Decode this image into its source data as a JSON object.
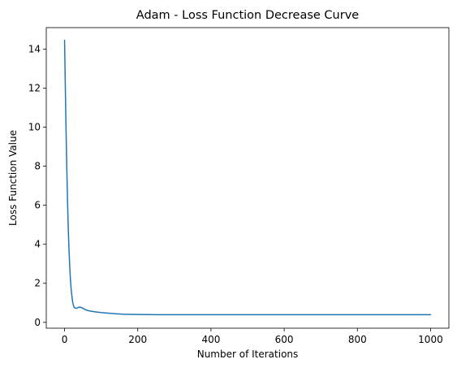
{
  "chart_data": {
    "type": "line",
    "title": "Adam - Loss Function Decrease Curve",
    "xlabel": "Number of Iterations",
    "ylabel": "Loss Function Value",
    "xlim": [
      -50,
      1050
    ],
    "ylim": [
      -0.3,
      15.1
    ],
    "xticks": [
      0,
      200,
      400,
      600,
      800,
      1000
    ],
    "yticks": [
      0,
      2,
      4,
      6,
      8,
      10,
      12,
      14
    ],
    "grid": false,
    "legend": "none",
    "line_color": "#1f77b4",
    "series": [
      {
        "x": [
          0,
          2,
          4,
          6,
          8,
          10,
          12,
          14,
          16,
          18,
          20,
          22,
          24,
          26,
          28,
          30,
          32,
          34,
          36,
          38,
          40,
          44,
          48,
          52,
          56,
          60,
          70,
          80,
          90,
          100,
          120,
          140,
          160,
          180,
          200,
          250,
          300,
          400,
          500,
          600,
          700,
          800,
          900,
          1000
        ],
        "y": [
          14.45,
          12.1,
          9.9,
          8.0,
          6.3,
          4.9,
          3.8,
          2.9,
          2.2,
          1.7,
          1.35,
          1.05,
          0.88,
          0.78,
          0.74,
          0.72,
          0.72,
          0.73,
          0.75,
          0.77,
          0.78,
          0.77,
          0.74,
          0.7,
          0.66,
          0.62,
          0.58,
          0.55,
          0.52,
          0.5,
          0.47,
          0.44,
          0.42,
          0.41,
          0.4,
          0.39,
          0.39,
          0.39,
          0.39,
          0.39,
          0.39,
          0.39,
          0.39,
          0.39
        ]
      }
    ]
  }
}
